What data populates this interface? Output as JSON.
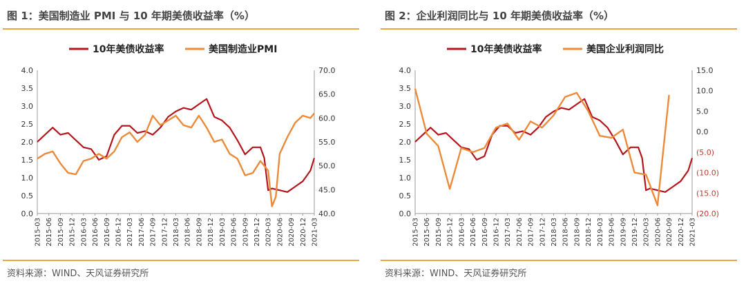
{
  "panels": [
    {
      "title": "图 1：美国制造业 PMI 与 10 年期美债收益率（%）",
      "source": "资料来源：WIND、天风证券研究所"
    },
    {
      "title": "图 2：企业利润同比与 10 年期美债收益率（%）",
      "source": "资料来源：WIND、天风证券研究所"
    }
  ],
  "colors": {
    "yield": "#b5141b",
    "other": "#ec8a3a",
    "rule": "#f0a04b",
    "negative_tick": "#c0392b"
  },
  "chart_data": [
    {
      "type": "line",
      "x_tick_labels": [
        "2015-03",
        "2015-06",
        "2015-09",
        "2015-12",
        "2016-03",
        "2016-06",
        "2016-09",
        "2016-12",
        "2017-03",
        "2017-06",
        "2017-09",
        "2017-12",
        "2018-03",
        "2018-06",
        "2018-09",
        "2018-12",
        "2019-03",
        "2019-06",
        "2019-09",
        "2019-12",
        "2020-03",
        "2020-06",
        "2020-09",
        "2020-12",
        "2021-03"
      ],
      "y_left": {
        "range": [
          0.0,
          4.0
        ],
        "ticks": [
          "0.0",
          "0.5",
          "1.0",
          "1.5",
          "2.0",
          "2.5",
          "3.0",
          "3.5",
          "4.0"
        ]
      },
      "y_right": {
        "range": [
          40.0,
          70.0
        ],
        "ticks": [
          "40.0",
          "45.0",
          "50.0",
          "55.0",
          "60.0",
          "65.0",
          "70.0"
        ]
      },
      "legend_position": "top",
      "series": [
        {
          "name": "10年美债收益率",
          "axis": "left",
          "color": "#b5141b",
          "x": [
            "2015-03",
            "2015-05",
            "2015-07",
            "2015-09",
            "2015-11",
            "2016-01",
            "2016-03",
            "2016-05",
            "2016-07",
            "2016-09",
            "2016-11",
            "2017-01",
            "2017-03",
            "2017-05",
            "2017-07",
            "2017-09",
            "2017-11",
            "2018-01",
            "2018-03",
            "2018-05",
            "2018-07",
            "2018-09",
            "2018-11",
            "2019-01",
            "2019-03",
            "2019-05",
            "2019-07",
            "2019-09",
            "2019-11",
            "2020-01",
            "2020-02",
            "2020-03",
            "2020-04",
            "2020-06",
            "2020-08",
            "2020-10",
            "2020-12",
            "2021-02",
            "2021-03"
          ],
          "values": [
            2.0,
            2.2,
            2.4,
            2.2,
            2.25,
            2.05,
            1.85,
            1.8,
            1.5,
            1.6,
            2.2,
            2.45,
            2.45,
            2.25,
            2.3,
            2.2,
            2.4,
            2.7,
            2.85,
            2.95,
            2.9,
            3.05,
            3.2,
            2.7,
            2.6,
            2.4,
            2.05,
            1.65,
            1.85,
            1.85,
            1.55,
            0.65,
            0.7,
            0.65,
            0.6,
            0.75,
            0.9,
            1.2,
            1.55
          ]
        },
        {
          "name": "美国制造业PMI",
          "axis": "right",
          "color": "#ec8a3a",
          "x": [
            "2015-03",
            "2015-05",
            "2015-07",
            "2015-09",
            "2015-11",
            "2016-01",
            "2016-03",
            "2016-05",
            "2016-07",
            "2016-09",
            "2016-11",
            "2017-01",
            "2017-03",
            "2017-05",
            "2017-07",
            "2017-09",
            "2017-11",
            "2018-01",
            "2018-03",
            "2018-05",
            "2018-07",
            "2018-09",
            "2018-11",
            "2019-01",
            "2019-03",
            "2019-05",
            "2019-07",
            "2019-09",
            "2019-11",
            "2020-01",
            "2020-03",
            "2020-04",
            "2020-05",
            "2020-06",
            "2020-08",
            "2020-10",
            "2020-12",
            "2021-02",
            "2021-03"
          ],
          "values": [
            51.5,
            52.5,
            53.0,
            50.5,
            48.5,
            48.2,
            51.0,
            51.5,
            52.5,
            51.5,
            53.0,
            56.0,
            57.0,
            55.0,
            56.5,
            60.5,
            58.5,
            59.5,
            60.5,
            58.5,
            58.0,
            60.5,
            58.0,
            55.0,
            55.5,
            52.5,
            51.5,
            48.0,
            48.5,
            51.0,
            49.0,
            41.5,
            43.5,
            52.5,
            56.0,
            59.0,
            60.5,
            60.0,
            61.0
          ]
        }
      ]
    },
    {
      "type": "line",
      "x_tick_labels": [
        "2015-03",
        "2015-06",
        "2015-09",
        "2015-12",
        "2016-03",
        "2016-06",
        "2016-09",
        "2016-12",
        "2017-03",
        "2017-06",
        "2017-09",
        "2017-12",
        "2018-03",
        "2018-06",
        "2018-09",
        "2018-12",
        "2019-03",
        "2019-06",
        "2019-09",
        "2019-12",
        "2020-03",
        "2020-06",
        "2020-09",
        "2020-12",
        "2021-03"
      ],
      "y_left": {
        "range": [
          0.0,
          4.0
        ],
        "ticks": [
          "0.0",
          "0.5",
          "1.0",
          "1.5",
          "2.0",
          "2.5",
          "3.0",
          "3.5",
          "4.0"
        ]
      },
      "y_right": {
        "range": [
          -20.0,
          15.0
        ],
        "ticks": [
          "(20.0)",
          "(15.0)",
          "(10.0)",
          "(5.0)",
          "0.0",
          "5.0",
          "10.0",
          "15.0"
        ]
      },
      "legend_position": "top",
      "series": [
        {
          "name": "10年美债收益率",
          "axis": "left",
          "color": "#b5141b",
          "x": [
            "2015-03",
            "2015-05",
            "2015-07",
            "2015-09",
            "2015-11",
            "2016-01",
            "2016-03",
            "2016-05",
            "2016-07",
            "2016-09",
            "2016-11",
            "2017-01",
            "2017-03",
            "2017-05",
            "2017-07",
            "2017-09",
            "2017-11",
            "2018-01",
            "2018-03",
            "2018-05",
            "2018-07",
            "2018-09",
            "2018-11",
            "2019-01",
            "2019-03",
            "2019-05",
            "2019-07",
            "2019-09",
            "2019-11",
            "2020-01",
            "2020-02",
            "2020-03",
            "2020-04",
            "2020-06",
            "2020-08",
            "2020-10",
            "2020-12",
            "2021-02",
            "2021-03"
          ],
          "values": [
            2.0,
            2.2,
            2.4,
            2.2,
            2.25,
            2.05,
            1.85,
            1.8,
            1.5,
            1.6,
            2.2,
            2.45,
            2.45,
            2.25,
            2.3,
            2.2,
            2.4,
            2.7,
            2.85,
            2.95,
            2.9,
            3.05,
            3.2,
            2.7,
            2.6,
            2.4,
            2.05,
            1.65,
            1.85,
            1.85,
            1.55,
            0.65,
            0.7,
            0.65,
            0.6,
            0.75,
            0.9,
            1.2,
            1.55
          ]
        },
        {
          "name": "美国企业利润同比",
          "axis": "right",
          "color": "#ec8a3a",
          "x": [
            "2015-03",
            "2015-06",
            "2015-09",
            "2015-12",
            "2016-03",
            "2016-06",
            "2016-09",
            "2016-12",
            "2017-03",
            "2017-06",
            "2017-09",
            "2017-12",
            "2018-03",
            "2018-06",
            "2018-09",
            "2018-12",
            "2019-03",
            "2019-06",
            "2019-09",
            "2019-12",
            "2020-03",
            "2020-06",
            "2020-09"
          ],
          "values": [
            10.5,
            -0.5,
            -3.5,
            -14.0,
            -4.0,
            -5.0,
            -4.0,
            1.0,
            2.0,
            -2.0,
            2.5,
            1.0,
            4.0,
            8.5,
            9.5,
            5.0,
            -1.0,
            -1.5,
            0.5,
            -10.0,
            -10.5,
            -18.0,
            9.0
          ]
        }
      ]
    }
  ]
}
